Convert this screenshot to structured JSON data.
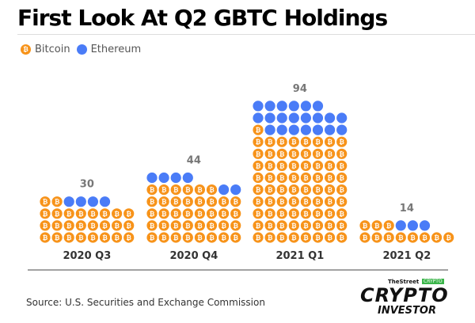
{
  "title": "First Look At Q2 GBTC Holdings",
  "source": "Source: U.S. Securities and Exchange Commission",
  "logo": {
    "top": "TheStreet",
    "tag": "CRYPTO",
    "main": "CRYPTO",
    "sub": "INVESTOR"
  },
  "chart_data": {
    "type": "pictogram-stacked-bar",
    "title": "First Look At Q2 GBTC Holdings",
    "legend": [
      {
        "name": "Bitcoin",
        "color": "#f7931a",
        "icon": "bitcoin-icon"
      },
      {
        "name": "Ethereum",
        "color": "#4a7cf7",
        "icon": "circle"
      }
    ],
    "legend_position": "top-left",
    "categories": [
      "2020 Q3",
      "2020 Q4",
      "2021 Q1",
      "2021 Q2"
    ],
    "totals": [
      30,
      44,
      94,
      14
    ],
    "series": [
      {
        "name": "Bitcoin",
        "values": [
          26,
          38,
          73,
          11
        ]
      },
      {
        "name": "Ethereum",
        "values": [
          4,
          6,
          21,
          3
        ]
      }
    ],
    "icons_per_row": 8,
    "grid": false
  }
}
